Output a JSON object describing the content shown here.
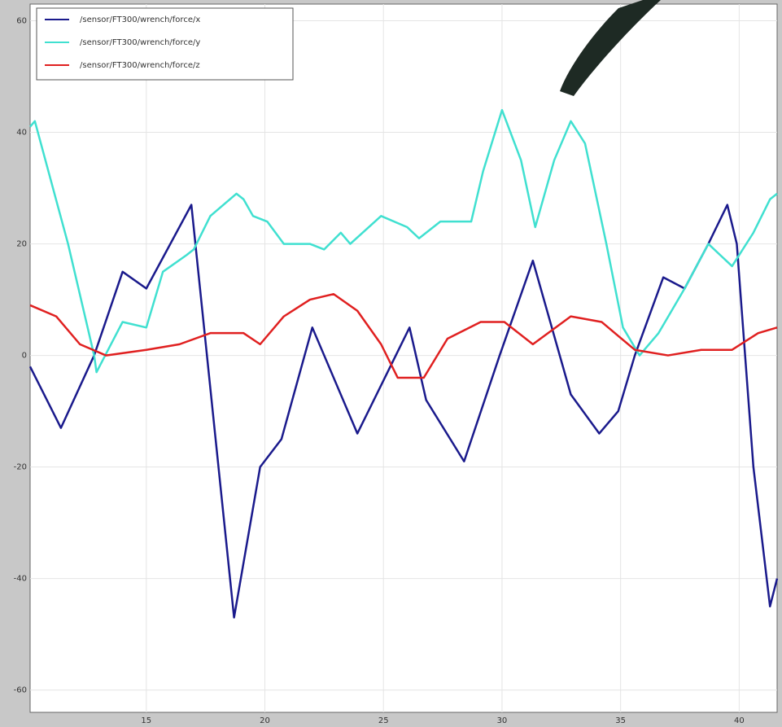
{
  "chart_data": {
    "type": "line",
    "series": [
      {
        "name": "/sensor/FT300/wrench/force/x",
        "color": "#1a1a8c",
        "x": [
          10.1,
          11.4,
          12.8,
          14.0,
          15.0,
          16.9,
          18.7,
          19.8,
          20.7,
          22.0,
          23.9,
          26.1,
          26.8,
          28.4,
          29.9,
          31.3,
          32.9,
          34.1,
          34.9,
          35.6,
          36.8,
          37.7,
          38.7,
          39.5,
          39.9,
          40.6,
          41.3,
          41.6
        ],
        "values": [
          -2,
          -13,
          0,
          15,
          12,
          27,
          -47,
          -20,
          -15,
          5,
          -14,
          5,
          -8,
          -19,
          0,
          17,
          -7,
          -14,
          -10,
          0,
          14,
          12,
          20,
          27,
          20,
          -20,
          -45,
          -40
        ]
      },
      {
        "name": "/sensor/FT300/wrench/force/y",
        "color": "#40e0d0",
        "x": [
          10.1,
          10.3,
          11.7,
          12.8,
          12.9,
          14.0,
          15.0,
          15.7,
          16.7,
          17.0,
          17.7,
          18.8,
          19.1,
          19.5,
          20.1,
          20.8,
          21.9,
          22.5,
          23.2,
          23.6,
          24.9,
          26.0,
          26.5,
          27.4,
          28.7,
          29.2,
          30.0,
          30.8,
          31.4,
          32.2,
          32.9,
          33.5,
          34.4,
          35.1,
          35.8,
          36.6,
          37.7,
          38.7,
          39.7,
          40.6,
          41.3,
          41.6
        ],
        "values": [
          41,
          42,
          20,
          0,
          -3,
          6,
          5,
          15,
          18,
          19,
          25,
          29,
          28,
          25,
          24,
          20,
          20,
          19,
          22,
          20,
          25,
          23,
          21,
          24,
          24,
          33,
          44,
          35,
          23,
          35,
          42,
          38,
          20,
          5,
          0,
          4,
          12,
          20,
          16,
          22,
          28,
          29
        ]
      },
      {
        "name": "/sensor/FT300/wrench/force/z",
        "color": "#e02020",
        "x": [
          10.1,
          11.2,
          12.2,
          13.3,
          15.0,
          16.4,
          17.7,
          19.1,
          19.8,
          20.8,
          21.9,
          22.9,
          23.9,
          24.9,
          25.6,
          26.7,
          27.7,
          29.1,
          30.1,
          31.3,
          32.9,
          34.2,
          35.6,
          37.0,
          38.4,
          39.7,
          40.8,
          41.6
        ],
        "values": [
          9,
          7,
          2,
          0,
          1,
          2,
          4,
          4,
          2,
          7,
          10,
          11,
          8,
          2,
          -4,
          -4,
          3,
          6,
          6,
          2,
          7,
          6,
          1,
          0,
          1,
          1,
          4,
          5
        ]
      }
    ],
    "xlim": [
      10.1,
      41.6
    ],
    "ylim": [
      -64,
      63
    ],
    "xticks": [
      15,
      20,
      25,
      30,
      35,
      40
    ],
    "yticks": [
      -60,
      -40,
      -20,
      0,
      20,
      40,
      60
    ],
    "grid": true
  }
}
